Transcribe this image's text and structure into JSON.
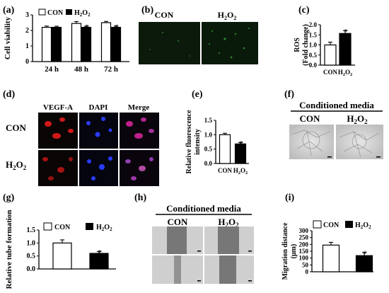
{
  "panels": {
    "a": "(a)",
    "b": "(b)",
    "c": "(c)",
    "d": "(d)",
    "e": "(e)",
    "f": "(f)",
    "g": "(g)",
    "h": "(h)",
    "i": "(i)"
  },
  "legend": {
    "con": "CON",
    "h2o2_base": "H",
    "h2o2_sub1": "2",
    "h2o2_mid": "O",
    "h2o2_sub2": "2"
  },
  "significance_mark": "*",
  "conditioned_media": "Conditioned media",
  "image_labels": {
    "b_con": "CON",
    "d_vegfa": "VEGF-A",
    "d_dapi": "DAPI",
    "d_merge": "Merge",
    "d_row_con": "CON",
    "f_con": "CON",
    "h_con": "CON"
  },
  "colors": {
    "con_fill": "#ffffff",
    "h2o2_fill": "#000000",
    "axis": "#000000"
  },
  "chart_data": [
    {
      "panel": "a",
      "type": "bar",
      "categories": [
        "24 h",
        "48 h",
        "72 h"
      ],
      "series": [
        {
          "name": "CON",
          "values": [
            2.2,
            2.45,
            2.5
          ],
          "errors": [
            0.08,
            0.12,
            0.08
          ]
        },
        {
          "name": "H2O2",
          "values": [
            2.2,
            2.2,
            2.2
          ],
          "errors": [
            0.07,
            0.07,
            0.08
          ]
        }
      ],
      "significant": [
        false,
        true,
        true
      ],
      "ylabel": "Cell viability",
      "ylim": [
        0,
        3
      ],
      "yticks": [
        0,
        1,
        2,
        3
      ]
    },
    {
      "panel": "c",
      "type": "bar",
      "categories": [
        "CON",
        "H2O2"
      ],
      "values": [
        1.0,
        1.57
      ],
      "errors": [
        0.14,
        0.14
      ],
      "significant": [
        false,
        true
      ],
      "ylabel": "ROS",
      "ylabel2": "(Fold change)",
      "ylim": [
        0,
        2.0
      ],
      "yticks": [
        0.0,
        0.5,
        1.0,
        1.5,
        2.0
      ],
      "ytick_labels": [
        "0.0",
        "0.5",
        "1.0",
        "1.5",
        "2.0"
      ]
    },
    {
      "panel": "e",
      "type": "bar",
      "categories": [
        "CON",
        "H2O2"
      ],
      "values": [
        1.0,
        0.68
      ],
      "errors": [
        0.05,
        0.05
      ],
      "significant": [
        false,
        true
      ],
      "ylabel": "Relative fluorescence",
      "ylabel2": "intensity",
      "ylim": [
        0,
        1.5
      ],
      "yticks": [
        0.0,
        0.5,
        1.0,
        1.5
      ],
      "ytick_labels": [
        "0.0",
        "0.5",
        "1.0",
        "1.5"
      ]
    },
    {
      "panel": "g",
      "type": "bar",
      "categories": [
        "CON",
        "H2O2"
      ],
      "values": [
        1.0,
        0.6
      ],
      "errors": [
        0.12,
        0.07
      ],
      "significant": [
        false,
        true
      ],
      "ylabel": "Relative tube formation",
      "ylim": [
        0,
        1.5
      ],
      "yticks": [
        0.0,
        0.5,
        1.0,
        1.5
      ],
      "ytick_labels": [
        "0.0",
        "0.5",
        "1.0",
        "1.5"
      ]
    },
    {
      "panel": "i",
      "type": "bar",
      "categories": [
        "CON",
        "H2O2"
      ],
      "values": [
        195,
        118
      ],
      "errors": [
        20,
        22
      ],
      "significant": [
        false,
        true
      ],
      "ylabel": "Migration distance",
      "ylabel2": "(μm)",
      "ylim": [
        0,
        300
      ],
      "yticks": [
        0,
        50,
        100,
        150,
        200,
        250,
        300
      ],
      "ytick_labels": [
        "0",
        "50",
        "100",
        "150",
        "200",
        "250",
        "300"
      ]
    }
  ]
}
